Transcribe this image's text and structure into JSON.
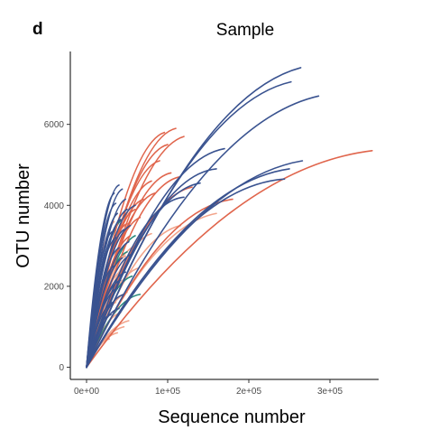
{
  "figure": {
    "panel_letter": "d"
  },
  "chart_data": {
    "type": "line",
    "title": "Sample",
    "xlabel": "Sequence number",
    "ylabel": "OTU number",
    "xlim": [
      -20000,
      360000
    ],
    "ylim": [
      -300,
      7800
    ],
    "x_ticks": [
      {
        "value": 0,
        "label": "0e+00"
      },
      {
        "value": 100000,
        "label": "1e+05"
      },
      {
        "value": 200000,
        "label": "2e+05"
      },
      {
        "value": 300000,
        "label": "3e+05"
      }
    ],
    "y_ticks": [
      {
        "value": 0,
        "label": "0"
      },
      {
        "value": 2000,
        "label": "2000"
      },
      {
        "value": 4000,
        "label": "4000"
      },
      {
        "value": 6000,
        "label": "6000"
      }
    ],
    "grid": false,
    "legend": "none",
    "colors": {
      "navy": "#3a5390",
      "red": "#e0654c",
      "salmon": "#f2a48b",
      "teal": "#2a8a7c"
    },
    "series": [
      {
        "color": "navy",
        "x": [
          0,
          132000,
          264000
        ],
        "y": [
          0,
          5200,
          7400
        ]
      },
      {
        "color": "navy",
        "x": [
          0,
          126000,
          252000
        ],
        "y": [
          0,
          5000,
          7050
        ]
      },
      {
        "color": "navy",
        "x": [
          0,
          143000,
          286000
        ],
        "y": [
          0,
          4700,
          6700
        ]
      },
      {
        "color": "navy",
        "x": [
          0,
          133000,
          266000
        ],
        "y": [
          0,
          3600,
          5100
        ]
      },
      {
        "color": "navy",
        "x": [
          0,
          122000,
          244000
        ],
        "y": [
          0,
          3400,
          4650
        ]
      },
      {
        "color": "navy",
        "x": [
          0,
          125000,
          250000
        ],
        "y": [
          0,
          3500,
          4900
        ]
      },
      {
        "color": "navy",
        "x": [
          0,
          85000,
          170000
        ],
        "y": [
          0,
          3900,
          5400
        ]
      },
      {
        "color": "navy",
        "x": [
          0,
          80000,
          160000
        ],
        "y": [
          0,
          3600,
          4900
        ]
      },
      {
        "color": "navy",
        "x": [
          0,
          70000,
          140000
        ],
        "y": [
          0,
          3300,
          4550
        ]
      },
      {
        "color": "navy",
        "x": [
          0,
          60000,
          120000
        ],
        "y": [
          0,
          3100,
          4200
        ]
      },
      {
        "color": "navy",
        "x": [
          0,
          22000,
          44000
        ],
        "y": [
          0,
          3200,
          4400
        ]
      },
      {
        "color": "navy",
        "x": [
          0,
          24000,
          48000
        ],
        "y": [
          0,
          3000,
          4150
        ]
      },
      {
        "color": "navy",
        "x": [
          0,
          20000,
          40000
        ],
        "y": [
          0,
          3300,
          4500
        ]
      },
      {
        "color": "navy",
        "x": [
          0,
          17000,
          34000
        ],
        "y": [
          0,
          3100,
          4300
        ]
      },
      {
        "color": "navy",
        "x": [
          0,
          25000,
          50000
        ],
        "y": [
          0,
          2800,
          3900
        ]
      },
      {
        "color": "navy",
        "x": [
          0,
          21000,
          42000
        ],
        "y": [
          0,
          2600,
          3650
        ]
      },
      {
        "color": "navy",
        "x": [
          0,
          19000,
          38000
        ],
        "y": [
          0,
          2700,
          3800
        ]
      },
      {
        "color": "navy",
        "x": [
          0,
          23000,
          46000
        ],
        "y": [
          0,
          2400,
          3400
        ]
      },
      {
        "color": "navy",
        "x": [
          0,
          18000,
          36000
        ],
        "y": [
          0,
          2300,
          3200
        ]
      },
      {
        "color": "navy",
        "x": [
          0,
          20000,
          40000
        ],
        "y": [
          0,
          2100,
          2950
        ]
      },
      {
        "color": "navy",
        "x": [
          0,
          26000,
          52000
        ],
        "y": [
          0,
          2200,
          3100
        ]
      },
      {
        "color": "navy",
        "x": [
          0,
          22000,
          44000
        ],
        "y": [
          0,
          1900,
          2700
        ]
      },
      {
        "color": "navy",
        "x": [
          0,
          17000,
          34000
        ],
        "y": [
          0,
          1800,
          2500
        ]
      },
      {
        "color": "navy",
        "x": [
          0,
          24000,
          48000
        ],
        "y": [
          0,
          1700,
          2350
        ]
      },
      {
        "color": "navy",
        "x": [
          0,
          21000,
          42000
        ],
        "y": [
          0,
          1550,
          2150
        ]
      },
      {
        "color": "navy",
        "x": [
          0,
          19000,
          38000
        ],
        "y": [
          0,
          1400,
          1950
        ]
      },
      {
        "color": "navy",
        "x": [
          0,
          23000,
          46000
        ],
        "y": [
          0,
          1300,
          1800
        ]
      },
      {
        "color": "navy",
        "x": [
          0,
          16000,
          32000
        ],
        "y": [
          0,
          1150,
          1600
        ]
      },
      {
        "color": "navy",
        "x": [
          0,
          20000,
          40000
        ],
        "y": [
          0,
          1050,
          1450
        ]
      },
      {
        "color": "navy",
        "x": [
          0,
          15000,
          30000
        ],
        "y": [
          0,
          950,
          1300
        ]
      },
      {
        "color": "navy",
        "x": [
          0,
          27000,
          54000
        ],
        "y": [
          0,
          2500,
          3500
        ]
      },
      {
        "color": "navy",
        "x": [
          0,
          30000,
          60000
        ],
        "y": [
          0,
          2900,
          4000
        ]
      },
      {
        "color": "navy",
        "x": [
          0,
          28000,
          56000
        ],
        "y": [
          0,
          2000,
          2800
        ]
      },
      {
        "color": "navy",
        "x": [
          0,
          18000,
          36000
        ],
        "y": [
          0,
          2950,
          4050
        ]
      },
      {
        "color": "navy",
        "x": [
          0,
          16000,
          32000
        ],
        "y": [
          0,
          2450,
          3350
        ]
      },
      {
        "color": "red",
        "x": [
          0,
          176000,
          352000
        ],
        "y": [
          0,
          3800,
          5350
        ]
      },
      {
        "color": "red",
        "x": [
          0,
          48000,
          96000
        ],
        "y": [
          0,
          4200,
          5800
        ]
      },
      {
        "color": "red",
        "x": [
          0,
          55000,
          110000
        ],
        "y": [
          0,
          4300,
          5900
        ]
      },
      {
        "color": "red",
        "x": [
          0,
          50000,
          100000
        ],
        "y": [
          0,
          4000,
          5500
        ]
      },
      {
        "color": "red",
        "x": [
          0,
          60000,
          120000
        ],
        "y": [
          0,
          4100,
          5700
        ]
      },
      {
        "color": "red",
        "x": [
          0,
          45000,
          90000
        ],
        "y": [
          0,
          3700,
          5100
        ]
      },
      {
        "color": "red",
        "x": [
          0,
          52000,
          104000
        ],
        "y": [
          0,
          3500,
          4800
        ]
      },
      {
        "color": "red",
        "x": [
          0,
          40000,
          80000
        ],
        "y": [
          0,
          3300,
          4600
        ]
      },
      {
        "color": "red",
        "x": [
          0,
          57000,
          114000
        ],
        "y": [
          0,
          3400,
          4700
        ]
      },
      {
        "color": "red",
        "x": [
          0,
          65000,
          130000
        ],
        "y": [
          0,
          3200,
          4450
        ]
      },
      {
        "color": "red",
        "x": [
          0,
          35000,
          70000
        ],
        "y": [
          0,
          3000,
          4150
        ]
      },
      {
        "color": "red",
        "x": [
          0,
          30000,
          60000
        ],
        "y": [
          0,
          2800,
          3900
        ]
      },
      {
        "color": "red",
        "x": [
          0,
          25000,
          50000
        ],
        "y": [
          0,
          2550,
          3550
        ]
      },
      {
        "color": "red",
        "x": [
          0,
          27000,
          54000
        ],
        "y": [
          0,
          2300,
          3250
        ]
      },
      {
        "color": "red",
        "x": [
          0,
          42000,
          84000
        ],
        "y": [
          0,
          3100,
          4300
        ]
      },
      {
        "color": "red",
        "x": [
          0,
          90000,
          180000
        ],
        "y": [
          0,
          3000,
          4150
        ]
      },
      {
        "color": "red",
        "x": [
          0,
          33000,
          66000
        ],
        "y": [
          0,
          2650,
          3700
        ]
      },
      {
        "color": "salmon",
        "x": [
          0,
          80000,
          160000
        ],
        "y": [
          0,
          2700,
          3800
        ]
      },
      {
        "color": "salmon",
        "x": [
          0,
          58000,
          116000
        ],
        "y": [
          0,
          2500,
          3500
        ]
      },
      {
        "color": "salmon",
        "x": [
          0,
          40000,
          80000
        ],
        "y": [
          0,
          2350,
          3300
        ]
      },
      {
        "color": "salmon",
        "x": [
          0,
          30000,
          60000
        ],
        "y": [
          0,
          2150,
          3000
        ]
      },
      {
        "color": "salmon",
        "x": [
          0,
          24000,
          48000
        ],
        "y": [
          0,
          1950,
          2750
        ]
      },
      {
        "color": "salmon",
        "x": [
          0,
          22000,
          44000
        ],
        "y": [
          0,
          1700,
          2400
        ]
      },
      {
        "color": "salmon",
        "x": [
          0,
          20000,
          40000
        ],
        "y": [
          0,
          1500,
          2100
        ]
      },
      {
        "color": "salmon",
        "x": [
          0,
          25000,
          50000
        ],
        "y": [
          0,
          1300,
          1850
        ]
      },
      {
        "color": "salmon",
        "x": [
          0,
          18000,
          36000
        ],
        "y": [
          0,
          1150,
          1600
        ]
      },
      {
        "color": "salmon",
        "x": [
          0,
          21000,
          42000
        ],
        "y": [
          0,
          950,
          1350
        ]
      },
      {
        "color": "salmon",
        "x": [
          0,
          23000,
          46000
        ],
        "y": [
          0,
          700,
          1000
        ]
      },
      {
        "color": "salmon",
        "x": [
          0,
          19000,
          38000
        ],
        "y": [
          0,
          600,
          850
        ]
      },
      {
        "color": "salmon",
        "x": [
          0,
          14000,
          28000
        ],
        "y": [
          0,
          500,
          700
        ]
      },
      {
        "color": "salmon",
        "x": [
          0,
          26000,
          52000
        ],
        "y": [
          0,
          800,
          1150
        ]
      },
      {
        "color": "salmon",
        "x": [
          0,
          32000,
          64000
        ],
        "y": [
          0,
          1750,
          2450
        ]
      },
      {
        "color": "salmon",
        "x": [
          0,
          17000,
          34000
        ],
        "y": [
          0,
          2550,
          3600
        ]
      },
      {
        "color": "teal",
        "x": [
          0,
          30000,
          60000
        ],
        "y": [
          0,
          2300,
          3250
        ]
      },
      {
        "color": "teal",
        "x": [
          0,
          25000,
          50000
        ],
        "y": [
          0,
          2050,
          2850
        ]
      },
      {
        "color": "teal",
        "x": [
          0,
          33000,
          66000
        ],
        "y": [
          0,
          1300,
          1800
        ]
      },
      {
        "color": "teal",
        "x": [
          0,
          22000,
          44000
        ],
        "y": [
          0,
          2600,
          3650
        ]
      },
      {
        "color": "teal",
        "x": [
          0,
          28000,
          56000
        ],
        "y": [
          0,
          1600,
          2250
        ]
      }
    ]
  }
}
